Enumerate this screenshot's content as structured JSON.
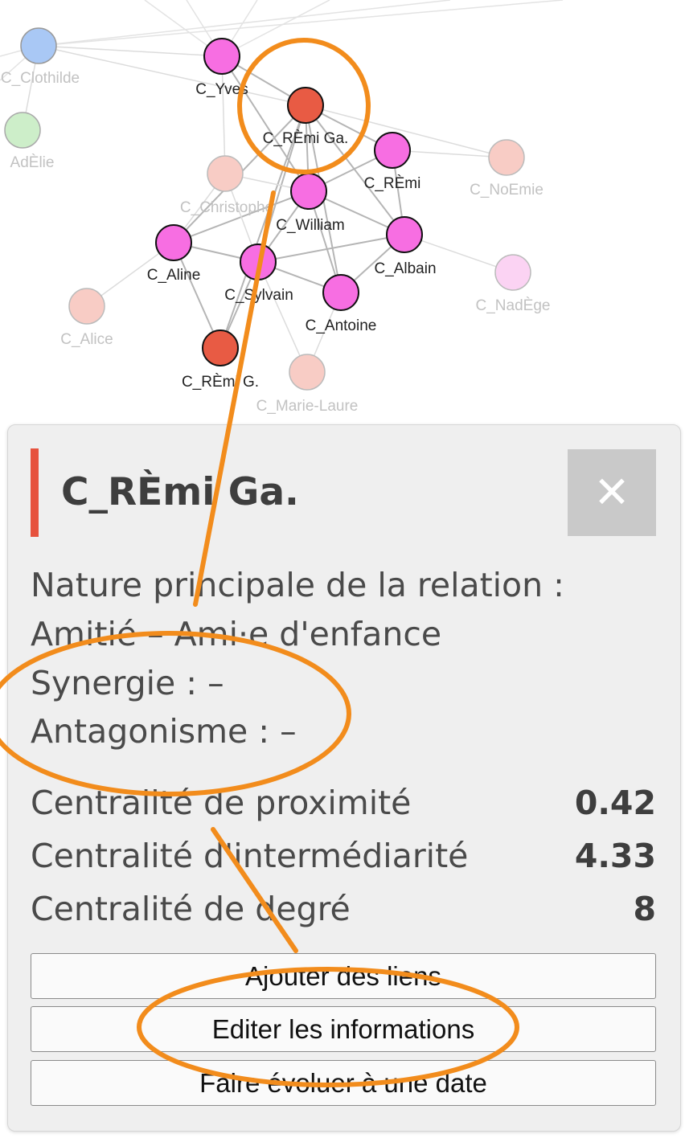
{
  "graph": {
    "nodes": [
      {
        "id": "clothilde",
        "label": "C_Clothilde",
        "color": "#a9c8f5",
        "stroke": "#999999",
        "faded": true
      },
      {
        "id": "adelie",
        "label": "AdÈlie",
        "color": "#cdeec9",
        "stroke": "#aaaaaa",
        "faded": true
      },
      {
        "id": "yves",
        "label": "C_Yves",
        "color": "#f76ee2",
        "stroke": "#111111",
        "faded": false
      },
      {
        "id": "remi_ga",
        "label": "C_RÈmi Ga.",
        "color": "#e85b44",
        "stroke": "#111111",
        "faded": false
      },
      {
        "id": "remi",
        "label": "C_RÈmi",
        "color": "#f76ee2",
        "stroke": "#111111",
        "faded": false
      },
      {
        "id": "noemie",
        "label": "C_NoEmie",
        "color": "#f8ccc5",
        "stroke": "#bbbbbb",
        "faded": true
      },
      {
        "id": "christophe",
        "label": "C_Christophe",
        "color": "#f8ccc5",
        "stroke": "#bbbbbb",
        "faded": true
      },
      {
        "id": "william",
        "label": "C_William",
        "color": "#f76ee2",
        "stroke": "#111111",
        "faded": false
      },
      {
        "id": "aline",
        "label": "C_Aline",
        "color": "#f76ee2",
        "stroke": "#111111",
        "faded": false
      },
      {
        "id": "albain",
        "label": "C_Albain",
        "color": "#f76ee2",
        "stroke": "#111111",
        "faded": false
      },
      {
        "id": "sylvain",
        "label": "C_Sylvain",
        "color": "#f76ee2",
        "stroke": "#111111",
        "faded": false
      },
      {
        "id": "nadege",
        "label": "C_NadÈge",
        "color": "#fbd3f3",
        "stroke": "#bbbbbb",
        "faded": true
      },
      {
        "id": "alice",
        "label": "C_Alice",
        "color": "#f8ccc5",
        "stroke": "#bbbbbb",
        "faded": true
      },
      {
        "id": "antoine",
        "label": "C_Antoine",
        "color": "#f76ee2",
        "stroke": "#111111",
        "faded": false
      },
      {
        "id": "remi_g",
        "label": "C_RÈmi G.",
        "color": "#e85b44",
        "stroke": "#111111",
        "faded": false
      },
      {
        "id": "marie_laure",
        "label": "C_Marie-Laure",
        "color": "#f8ccc5",
        "stroke": "#bbbbbb",
        "faded": true
      }
    ],
    "edges": [
      [
        "clothilde",
        "yves"
      ],
      [
        "clothilde",
        "adelie"
      ],
      [
        "clothilde",
        "remi_ga"
      ],
      [
        "yves",
        "remi_ga"
      ],
      [
        "yves",
        "william"
      ],
      [
        "yves",
        "christophe"
      ],
      [
        "remi_ga",
        "remi"
      ],
      [
        "remi_ga",
        "william"
      ],
      [
        "remi_ga",
        "aline"
      ],
      [
        "remi_ga",
        "sylvain"
      ],
      [
        "remi_ga",
        "antoine"
      ],
      [
        "remi_ga",
        "albain"
      ],
      [
        "remi_ga",
        "noemie"
      ],
      [
        "remi_ga",
        "remi_g"
      ],
      [
        "remi",
        "william"
      ],
      [
        "remi",
        "albain"
      ],
      [
        "remi",
        "noemie"
      ],
      [
        "william",
        "aline"
      ],
      [
        "william",
        "sylvain"
      ],
      [
        "william",
        "antoine"
      ],
      [
        "william",
        "albain"
      ],
      [
        "aline",
        "sylvain"
      ],
      [
        "aline",
        "alice"
      ],
      [
        "aline",
        "remi_g"
      ],
      [
        "aline",
        "christophe"
      ],
      [
        "sylvain",
        "antoine"
      ],
      [
        "sylvain",
        "remi_g"
      ],
      [
        "sylvain",
        "marie_laure"
      ],
      [
        "sylvain",
        "albain"
      ],
      [
        "antoine",
        "albain"
      ],
      [
        "antoine",
        "marie_laure"
      ],
      [
        "albain",
        "nadege"
      ],
      [
        "christophe",
        "sylvain"
      ],
      [
        "christophe",
        "william"
      ]
    ]
  },
  "panel": {
    "title": "C_RÈmi Ga.",
    "accent_color": "#e6523e",
    "close_label": "✕",
    "relation_line": "Nature principale de la relation :",
    "relation_value": "Amitié – Ami·e d'enfance",
    "synergy": "Synergie : –",
    "antagonism": "Antagonisme : –",
    "metrics": [
      {
        "label": "Centralité de proximité",
        "value": "0.42"
      },
      {
        "label": "Centralité d'intermédiarité",
        "value": "4.33"
      },
      {
        "label": "Centralité de degré",
        "value": "8"
      }
    ],
    "buttons": {
      "add_links": "Ajouter des liens",
      "edit_info": "Editer les informations",
      "evolve_date": "Faire évoluer à une date"
    }
  },
  "annotation_color": "#f28c1c"
}
